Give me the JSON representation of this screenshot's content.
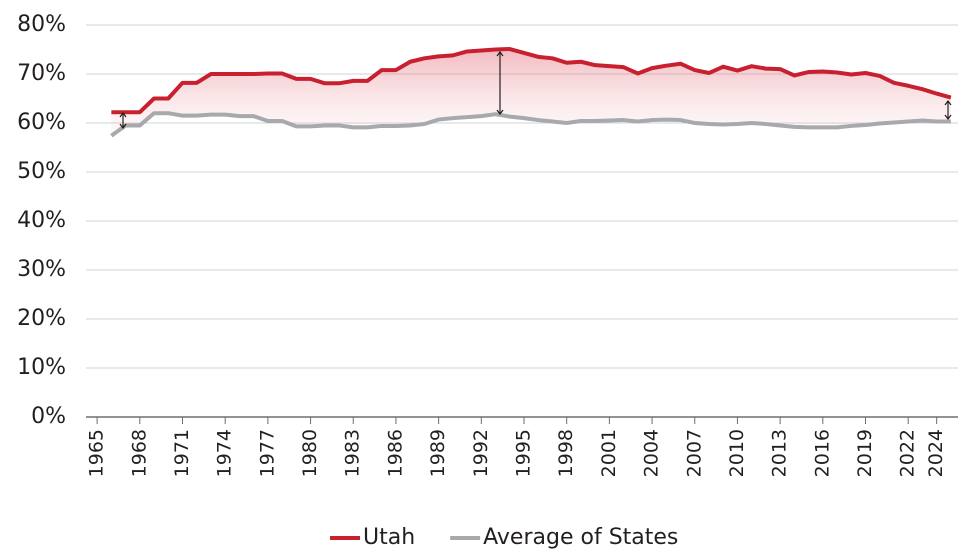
{
  "chart_data": {
    "type": "line",
    "x": [
      1966,
      1967,
      1968,
      1969,
      1970,
      1971,
      1972,
      1973,
      1974,
      1975,
      1976,
      1977,
      1978,
      1979,
      1980,
      1981,
      1982,
      1983,
      1984,
      1985,
      1986,
      1987,
      1988,
      1989,
      1990,
      1991,
      1992,
      1993,
      1994,
      1995,
      1996,
      1997,
      1998,
      1999,
      2000,
      2001,
      2002,
      2003,
      2004,
      2005,
      2006,
      2007,
      2008,
      2009,
      2010,
      2011,
      2012,
      2013,
      2014,
      2015,
      2016,
      2017,
      2018,
      2019,
      2020,
      2021,
      2022,
      2023,
      2024,
      2025
    ],
    "series": [
      {
        "name": "Utah",
        "color": "#c8202f",
        "values": [
          62.2,
          62.2,
          62.2,
          65,
          65,
          68.2,
          68.2,
          70,
          70,
          70,
          70,
          70.1,
          70.1,
          69,
          69,
          68.1,
          68.1,
          68.6,
          68.6,
          70.8,
          70.8,
          72.5,
          73.2,
          73.6,
          73.8,
          74.6,
          74.8,
          75,
          75.1,
          74.3,
          73.5,
          73.2,
          72.3,
          72.5,
          71.8,
          71.6,
          71.4,
          70.1,
          71.2,
          71.7,
          72.1,
          70.8,
          70.2,
          71.5,
          70.7,
          71.6,
          71.1,
          71,
          69.7,
          70.4,
          70.5,
          70.3,
          69.9,
          70.2,
          69.6,
          68.2,
          67.6,
          66.9,
          66,
          65.2
        ]
      },
      {
        "name": "Average of States",
        "color": "#a7a9ac",
        "values": [
          57.4,
          59.5,
          59.5,
          62,
          62,
          61.5,
          61.5,
          61.7,
          61.7,
          61.4,
          61.4,
          60.4,
          60.4,
          59.3,
          59.3,
          59.5,
          59.5,
          59.1,
          59.1,
          59.4,
          59.4,
          59.5,
          59.8,
          60.7,
          61,
          61.2,
          61.4,
          61.8,
          61.3,
          61,
          60.6,
          60.3,
          60,
          60.4,
          60.4,
          60.5,
          60.6,
          60.3,
          60.6,
          60.7,
          60.6,
          60,
          59.8,
          59.7,
          59.8,
          60,
          59.8,
          59.5,
          59.2,
          59.1,
          59.1,
          59.1,
          59.4,
          59.6,
          59.9,
          60.1,
          60.3,
          60.5,
          60.3,
          60.3
        ]
      }
    ],
    "xlim": [
      1964.5,
      2025.5
    ],
    "xticks": [
      1965,
      1968,
      1971,
      1974,
      1977,
      1980,
      1983,
      1986,
      1989,
      1992,
      1995,
      1998,
      2001,
      2004,
      2007,
      2010,
      2013,
      2016,
      2019,
      2022,
      2024
    ],
    "ylim": [
      0,
      80
    ],
    "yticks": [
      {
        "value": 0,
        "label": "0%"
      },
      {
        "value": 10,
        "label": "10%"
      },
      {
        "value": 20,
        "label": "20%"
      },
      {
        "value": 30,
        "label": "30%"
      },
      {
        "value": 40,
        "label": "40%"
      },
      {
        "value": 50,
        "label": "50%"
      },
      {
        "value": 60,
        "label": "60%"
      },
      {
        "value": 70,
        "label": "70%"
      },
      {
        "value": 80,
        "label": "80%"
      }
    ],
    "grid": true,
    "legend": "bottom"
  }
}
